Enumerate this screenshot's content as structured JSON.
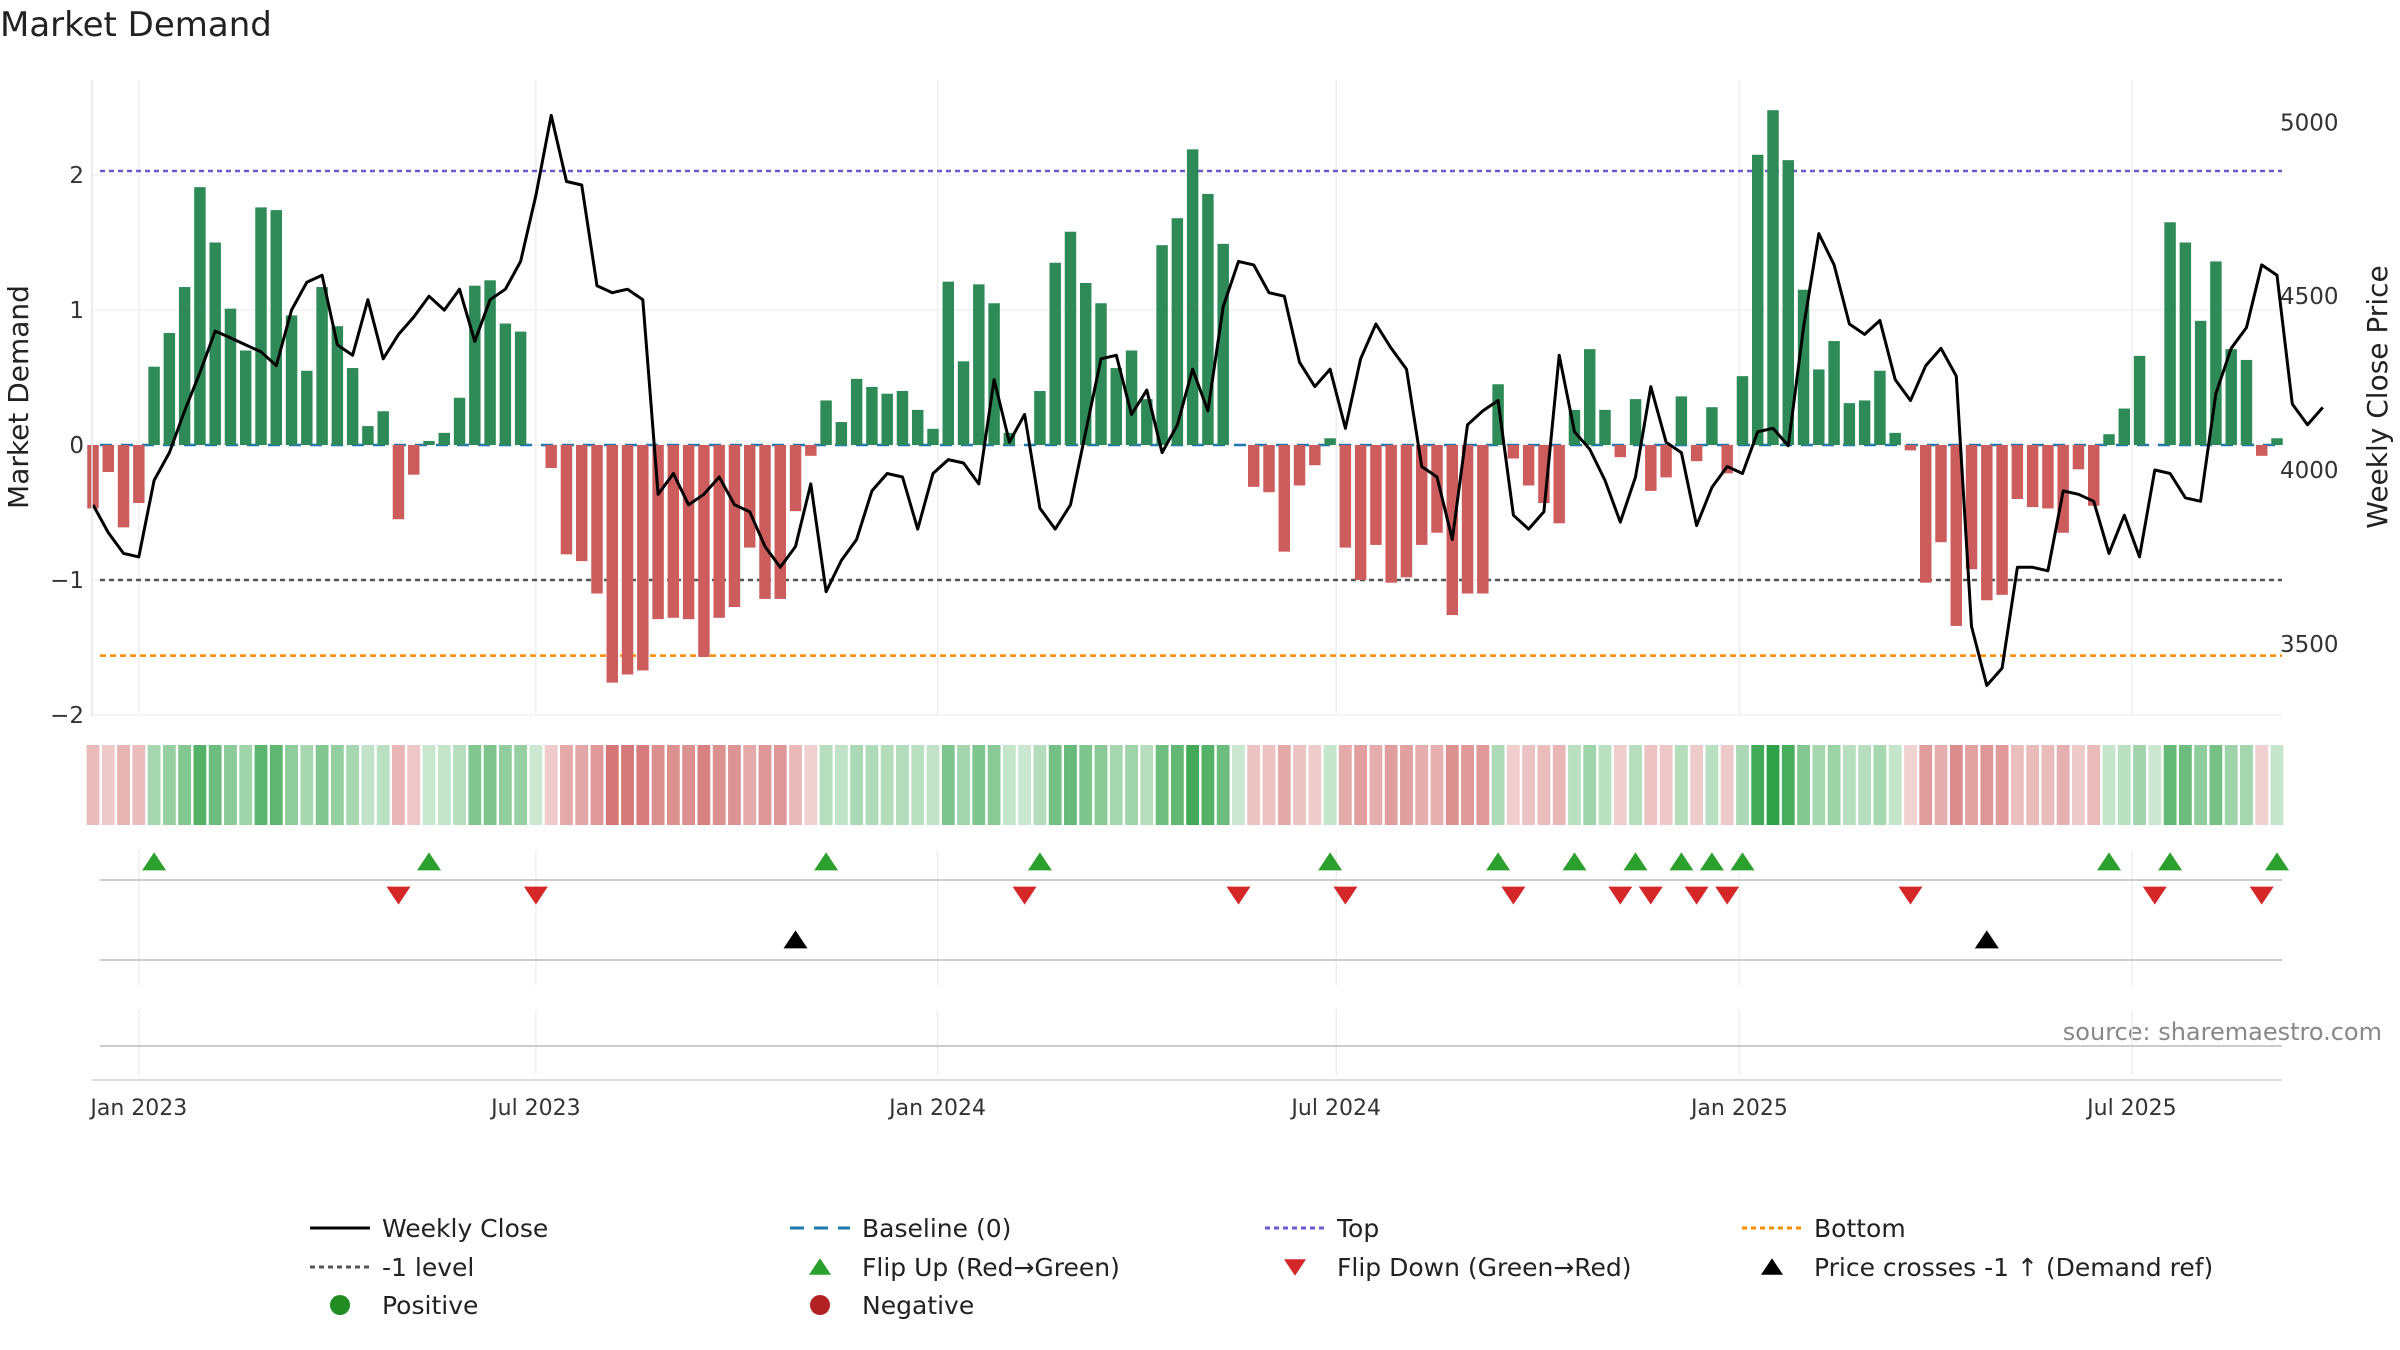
{
  "chart_data": {
    "type": "bar",
    "title": "Market Demand",
    "ylabel_left": "Market Demand",
    "ylabel_right": "Weekly Close Price",
    "ylim_left": [
      -2.1,
      2.6
    ],
    "ylim_right": [
      3270,
      5100
    ],
    "yticks_left": [
      -2,
      -1,
      0,
      1,
      2
    ],
    "yticks_right": [
      3500,
      4000,
      4500,
      5000
    ],
    "xticks": [
      "Jan 2023",
      "Jul 2023",
      "Jan 2024",
      "Jul 2024",
      "Jan 2025",
      "Jul 2025"
    ],
    "xtick_weeks": [
      3,
      29,
      55.3,
      81.4,
      107.8,
      133.5
    ],
    "reference_lines": {
      "top": 2.03,
      "minus_one": -1,
      "bottom": -1.56,
      "baseline": 0
    },
    "demand": [
      -0.47,
      -0.2,
      -0.61,
      -0.43,
      0.58,
      0.83,
      1.17,
      1.91,
      1.5,
      1.01,
      0.7,
      1.76,
      1.74,
      0.96,
      0.55,
      1.17,
      0.88,
      0.57,
      0.14,
      0.25,
      -0.55,
      -0.22,
      0.03,
      0.09,
      0.35,
      1.18,
      1.22,
      0.9,
      0.84,
      0.0,
      -0.17,
      -0.81,
      -0.86,
      -1.1,
      -1.76,
      -1.7,
      -1.67,
      -1.29,
      -1.28,
      -1.29,
      -1.57,
      -1.28,
      -1.2,
      -0.76,
      -1.14,
      -1.14,
      -0.49,
      -0.08,
      0.33,
      0.17,
      0.49,
      0.43,
      0.38,
      0.4,
      0.26,
      0.12,
      1.21,
      0.62,
      1.19,
      1.05,
      0.09,
      0.0,
      0.4,
      1.35,
      1.58,
      1.2,
      1.05,
      0.57,
      0.7,
      0.34,
      1.48,
      1.68,
      2.19,
      1.86,
      1.49,
      0.0,
      -0.31,
      -0.35,
      -0.79,
      -0.3,
      -0.15,
      0.05,
      -0.76,
      -1.0,
      -0.74,
      -1.02,
      -0.98,
      -0.74,
      -0.65,
      -1.26,
      -1.1,
      -1.1,
      0.45,
      -0.1,
      -0.3,
      -0.43,
      -0.58,
      0.26,
      0.71,
      0.26,
      -0.09,
      0.34,
      -0.34,
      -0.24,
      0.36,
      -0.12,
      0.28,
      -0.21,
      0.51,
      2.15,
      2.48,
      2.11,
      1.15,
      0.56,
      0.77,
      0.31,
      0.33,
      0.55,
      0.09,
      -0.04,
      -1.02,
      -0.72,
      -1.34,
      -0.92,
      -1.15,
      -1.11,
      -0.4,
      -0.46,
      -0.47,
      -0.65,
      -0.18,
      -0.45,
      0.08,
      0.27,
      0.66,
      0.0,
      1.65,
      1.5,
      0.92,
      1.36,
      0.71,
      0.63,
      -0.08,
      0.05
    ],
    "weekly_close": [
      3900,
      3820,
      3760,
      3750,
      3970,
      4050,
      4170,
      4280,
      4400,
      4380,
      4360,
      4340,
      4300,
      4460,
      4540,
      4560,
      4360,
      4330,
      4490,
      4320,
      4390,
      4440,
      4500,
      4460,
      4520,
      4370,
      4490,
      4520,
      4600,
      4790,
      5020,
      4830,
      4820,
      4530,
      4510,
      4520,
      4490,
      3930,
      3990,
      3900,
      3930,
      3980,
      3900,
      3880,
      3780,
      3720,
      3780,
      3960,
      3650,
      3740,
      3800,
      3940,
      3990,
      3980,
      3830,
      3990,
      4030,
      4020,
      3960,
      4260,
      4080,
      4160,
      3890,
      3830,
      3900,
      4110,
      4320,
      4330,
      4160,
      4230,
      4050,
      4130,
      4290,
      4170,
      4470,
      4600,
      4590,
      4510,
      4500,
      4310,
      4240,
      4290,
      4120,
      4320,
      4420,
      4350,
      4290,
      4010,
      3980,
      3800,
      4130,
      4170,
      4200,
      3870,
      3830,
      3880,
      4330,
      4110,
      4060,
      3970,
      3850,
      3980,
      4240,
      4080,
      4050,
      3840,
      3950,
      4010,
      3990,
      4110,
      4120,
      4070,
      4410,
      4680,
      4590,
      4420,
      4390,
      4430,
      4260,
      4200,
      4300,
      4350,
      4270,
      3550,
      3380,
      3430,
      3720,
      3720,
      3710,
      3940,
      3930,
      3910,
      3760,
      3870,
      3750,
      4000,
      3990,
      3920,
      3910,
      4220,
      4350,
      4410,
      4590,
      4560,
      4190,
      4130,
      4180
    ],
    "legend": [
      {
        "label": "Weekly Close",
        "kind": "line",
        "color": "#000000"
      },
      {
        "label": "Baseline (0)",
        "kind": "dashed",
        "color": "#1f77b4"
      },
      {
        "label": "Top",
        "kind": "dotted",
        "color": "#6a5acd"
      },
      {
        "label": "Bottom",
        "kind": "dotted",
        "color": "#ff8c00"
      },
      {
        "label": "-1 level",
        "kind": "dotted",
        "color": "#555555"
      },
      {
        "label": "Flip Up (Red→Green)",
        "kind": "tri-up",
        "color": "#2ca02c"
      },
      {
        "label": "Flip Down (Green→Red)",
        "kind": "tri-down",
        "color": "#d62728"
      },
      {
        "label": "Price crosses -1 ↑ (Demand ref)",
        "kind": "tri-up",
        "color": "#000000"
      },
      {
        "label": "Positive",
        "kind": "dot",
        "color": "#228b22"
      },
      {
        "label": "Negative",
        "kind": "dot",
        "color": "#b22222"
      }
    ],
    "source": "source: sharemaestro.com"
  },
  "colors": {
    "positive_bar": "#2e8b57",
    "negative_bar": "#cd5c5c",
    "flip_up": "#2ca02c",
    "flip_down": "#d62728",
    "cross": "#000000"
  }
}
